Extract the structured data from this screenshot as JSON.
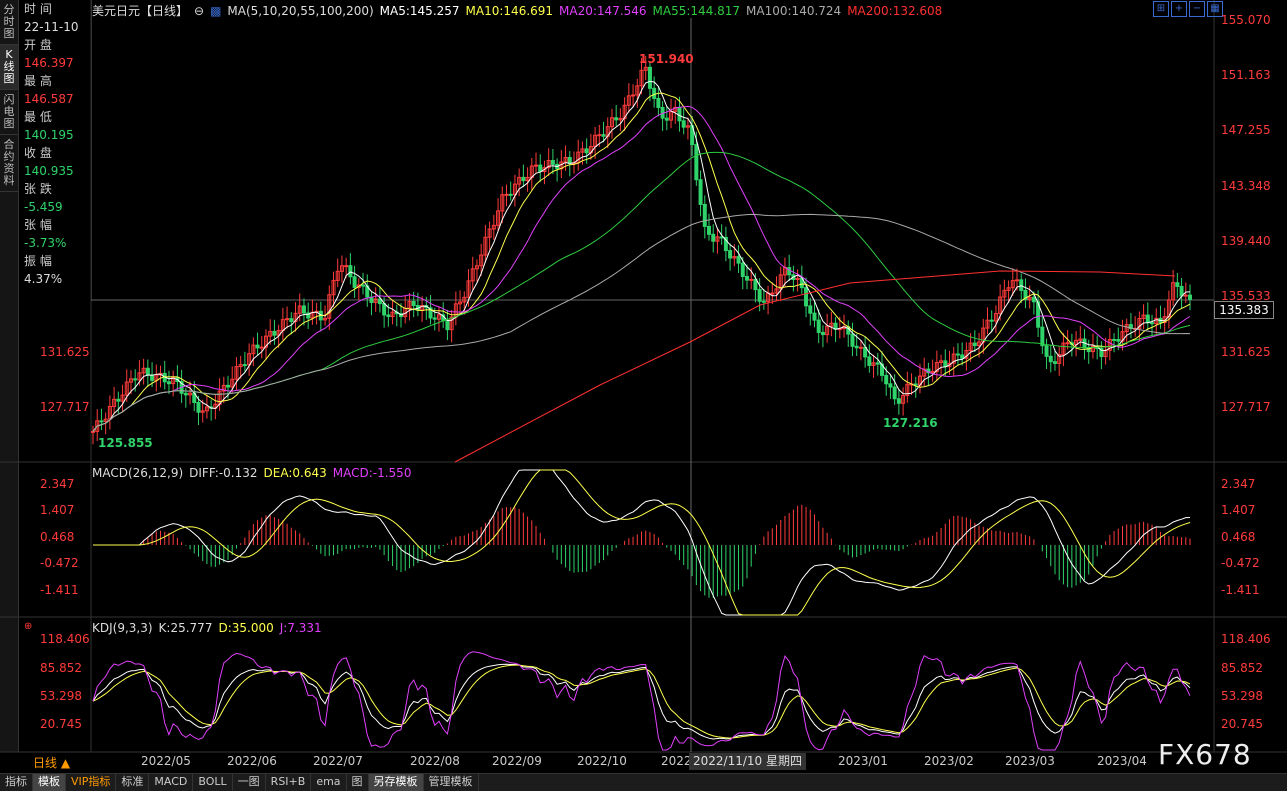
{
  "sidenav": [
    "分时图",
    "K线图",
    "闪电图",
    "合约资料"
  ],
  "info": {
    "time_label": "时 间",
    "time": "22-11-10",
    "open_label": "开 盘",
    "open": "146.397",
    "high_label": "最 高",
    "high": "146.587",
    "low_label": "最 低",
    "low": "140.195",
    "close_label": "收 盘",
    "close": "140.935",
    "chg_label": "张 跌",
    "chg": "-5.459",
    "pct_label": "张 幅",
    "pct": "-3.73%",
    "amp_label": "振 幅",
    "amp": "4.37%"
  },
  "main_header": {
    "symbol": "美元日元【日线】",
    "ma": "MA(5,10,20,55,100,200)",
    "ma5": "MA5:145.257",
    "ma10": "MA10:146.691",
    "ma20": "MA20:147.546",
    "ma55": "MA55:144.817",
    "ma100": "MA100:140.724",
    "ma200": "MA200:132.608"
  },
  "main_y_right": [
    "155.070",
    "151.163",
    "147.255",
    "143.348",
    "139.440",
    "135.533",
    "131.625",
    "127.717"
  ],
  "main_y_left": [
    "131.625",
    "127.717"
  ],
  "current_price": "135.383",
  "annotations": {
    "high": "151.940",
    "low1": "125.855",
    "low2": "127.216"
  },
  "macd_header": {
    "name": "MACD(26,12,9)",
    "diff": "DIFF:-0.132",
    "dea": "DEA:0.643",
    "macd": "MACD:-1.550"
  },
  "macd_y": [
    "2.347",
    "1.407",
    "0.468",
    "-0.472",
    "-1.411"
  ],
  "kdj_header": {
    "name": "KDJ(9,3,3)",
    "k": "K:25.777",
    "d": "D:35.000",
    "j": "J:7.331"
  },
  "kdj_y": [
    "118.406",
    "85.852",
    "53.298",
    "20.745"
  ],
  "x_labels": [
    "2022/05",
    "2022/06",
    "2022/07",
    "2022/08",
    "2022/09",
    "2022/10",
    "2022",
    "2023/01",
    "2023/02",
    "2023/03",
    "2023/04"
  ],
  "crosshair_date": "2022/11/10 星期四",
  "period_button": "日线 ▲",
  "bottom_tabs": [
    "指标",
    "模板",
    "VIP指标",
    "标准",
    "MACD",
    "BOLL",
    "一图",
    "RSI+B",
    "ema",
    "图",
    "另存模板",
    "管理模板"
  ],
  "logo": "FX678",
  "colors": {
    "up": "#ff3b3b",
    "down": "#2fd36a",
    "ma5": "#ffffff",
    "ma10": "#ffff4d",
    "ma20": "#e040fb",
    "ma55": "#2ecc40",
    "ma100": "#aaaaaa",
    "ma200": "#ff3030"
  }
}
